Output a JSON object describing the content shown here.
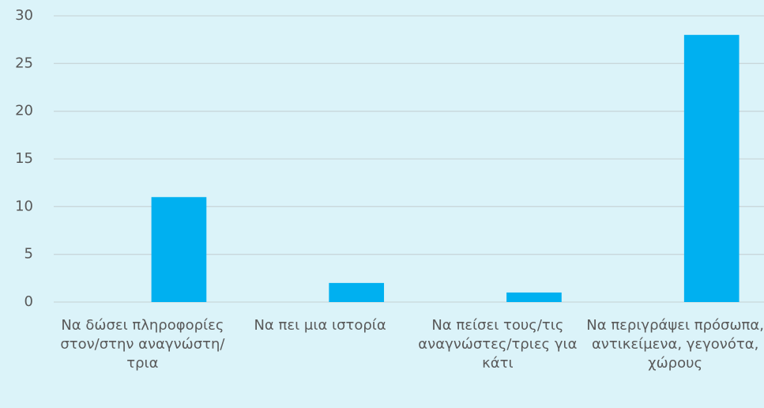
{
  "chart_data": {
    "type": "bar",
    "categories": [
      "Να δώσει πληροφορίες στον/στην αναγνώστη/τρια",
      "Να πει μια ιστορία",
      "Να πείσει τους/τις αναγνώστες/τριες για κάτι",
      "Να περιγράψει πρόσωπα, αντικείμενα, γεγονότα, χώρους"
    ],
    "values": [
      11,
      2,
      1,
      28
    ],
    "color": "#00b0f0",
    "ylim": [
      0,
      30
    ],
    "yticks": [
      0,
      5,
      10,
      15,
      20,
      25,
      30
    ],
    "grid": true
  }
}
